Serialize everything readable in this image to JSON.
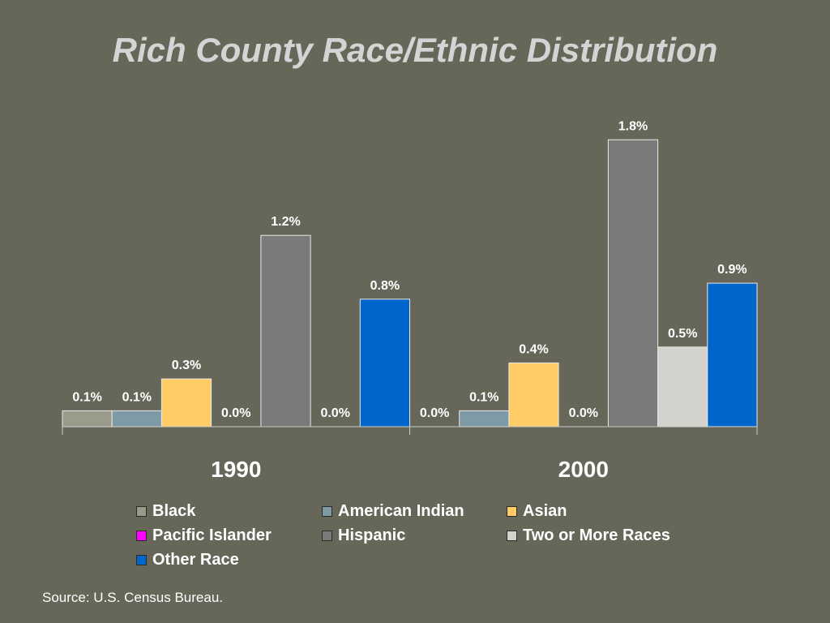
{
  "title": "Rich County Race/Ethnic Distribution",
  "source": "Source: U.S. Census Bureau.",
  "legend": [
    {
      "name": "Black",
      "color": "#9b9b8c"
    },
    {
      "name": "American Indian",
      "color": "#7e9aa6"
    },
    {
      "name": "Asian",
      "color": "#ffcc66"
    },
    {
      "name": "Pacific Islander",
      "color": "#ff00ff"
    },
    {
      "name": "Hispanic",
      "color": "#7a7a7a"
    },
    {
      "name": "Two or More Races",
      "color": "#d4d2cc"
    },
    {
      "name": "Other Race",
      "color": "#0066cc"
    }
  ],
  "chart_data": {
    "type": "bar",
    "title": "Rich County Race/Ethnic Distribution",
    "categories": [
      "1990",
      "2000"
    ],
    "ylim": [
      0,
      2.0
    ],
    "grid": false,
    "legend_position": "bottom",
    "value_suffix": "%",
    "series": [
      {
        "name": "Black",
        "values": [
          0.1,
          0.0
        ],
        "labels": [
          "0.1%",
          "0.0%"
        ],
        "color": "#9b9b8c"
      },
      {
        "name": "American Indian",
        "values": [
          0.1,
          0.1
        ],
        "labels": [
          "0.1%",
          "0.1%"
        ],
        "color": "#7e9aa6"
      },
      {
        "name": "Asian",
        "values": [
          0.3,
          0.4
        ],
        "labels": [
          "0.3%",
          "0.4%"
        ],
        "color": "#ffcc66"
      },
      {
        "name": "Pacific Islander",
        "values": [
          0.0,
          0.0
        ],
        "labels": [
          "0.0%",
          "0.0%"
        ],
        "color": "#ff00ff"
      },
      {
        "name": "Hispanic",
        "values": [
          1.2,
          1.8
        ],
        "labels": [
          "1.2%",
          "1.8%"
        ],
        "color": "#7a7a7a"
      },
      {
        "name": "Two or More Races",
        "values": [
          0.0,
          0.5
        ],
        "labels": [
          "0.0%",
          "0.5%"
        ],
        "color": "#d4d2cc"
      },
      {
        "name": "Other Race",
        "values": [
          0.8,
          0.9
        ],
        "labels": [
          "0.8%",
          "0.9%"
        ],
        "color": "#0066cc"
      }
    ]
  }
}
